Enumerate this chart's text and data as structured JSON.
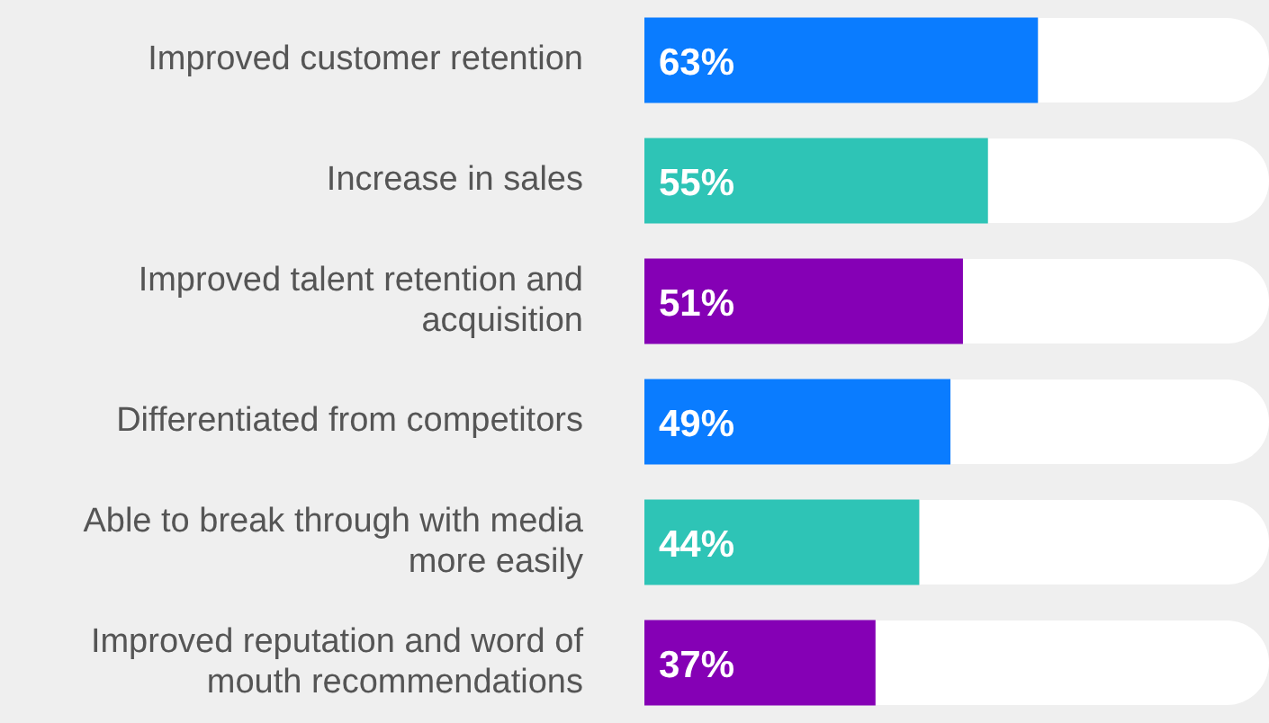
{
  "chart_data": {
    "type": "bar",
    "orientation": "horizontal",
    "categories": [
      "Improved customer retention",
      "Increase in sales",
      "Improved talent retention and acquisition",
      "Differentiated from competitors",
      "Able to break through with media more easily",
      "Improved reputation and word of mouth recommendations"
    ],
    "values": [
      63,
      55,
      51,
      49,
      44,
      37
    ],
    "colors": [
      "#0a7cff",
      "#2ec4b6",
      "#8500b5",
      "#0a7cff",
      "#2ec4b6",
      "#8500b5"
    ],
    "value_labels": [
      "63%",
      "55%",
      "51%",
      "49%",
      "44%",
      "37%"
    ],
    "xlim": [
      0,
      100
    ],
    "tick_labels": "y",
    "legend": false
  }
}
